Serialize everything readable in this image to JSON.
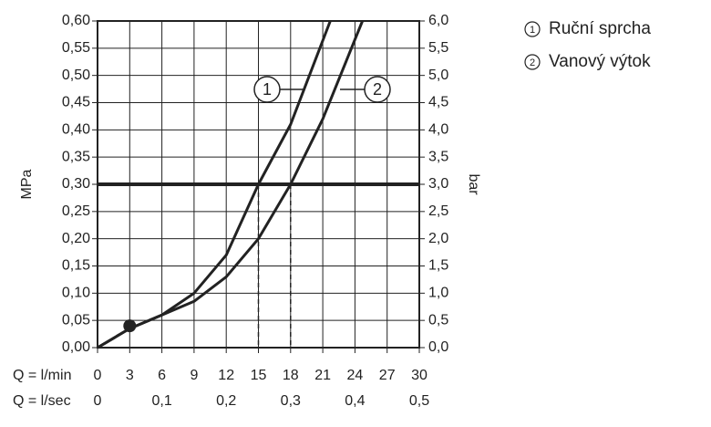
{
  "chart_data": {
    "type": "line",
    "y_label": "MPa",
    "y2_label": "bar",
    "x_label": "Q = l/min",
    "x2_label": "Q = l/sec",
    "xlim": [
      0,
      30
    ],
    "xticks": [
      0,
      3,
      6,
      9,
      12,
      15,
      18,
      21,
      24,
      27,
      30
    ],
    "x2lim": [
      0,
      0.5
    ],
    "x2ticks": [
      0,
      {
        "value": 0.1,
        "label": "0,1"
      },
      {
        "value": 0.2,
        "label": "0,2"
      },
      {
        "value": 0.3,
        "label": "0,3"
      },
      {
        "value": 0.4,
        "label": "0,4"
      },
      {
        "value": 0.5,
        "label": "0,5"
      }
    ],
    "ylim": [
      0,
      0.6
    ],
    "yticks": [
      {
        "value": 0,
        "label": "0,00"
      },
      {
        "value": 0.05,
        "label": "0,05"
      },
      {
        "value": 0.1,
        "label": "0,10"
      },
      {
        "value": 0.15,
        "label": "0,15"
      },
      {
        "value": 0.2,
        "label": "0,20"
      },
      {
        "value": 0.25,
        "label": "0,25"
      },
      {
        "value": 0.3,
        "label": "0,30"
      },
      {
        "value": 0.35,
        "label": "0,35"
      },
      {
        "value": 0.4,
        "label": "0,40"
      },
      {
        "value": 0.45,
        "label": "0,45"
      },
      {
        "value": 0.5,
        "label": "0,50"
      },
      {
        "value": 0.55,
        "label": "0,55"
      },
      {
        "value": 0.6,
        "label": "0,60"
      }
    ],
    "y2lim": [
      0,
      6
    ],
    "y2ticks": [
      {
        "value": 0,
        "label": "0,0"
      },
      {
        "value": 0.5,
        "label": "0,5"
      },
      {
        "value": 1,
        "label": "1,0"
      },
      {
        "value": 1.5,
        "label": "1,5"
      },
      {
        "value": 2,
        "label": "2,0"
      },
      {
        "value": 2.5,
        "label": "2,5"
      },
      {
        "value": 3,
        "label": "3,0"
      },
      {
        "value": 3.5,
        "label": "3,5"
      },
      {
        "value": 4,
        "label": "4,0"
      },
      {
        "value": 4.5,
        "label": "4,5"
      },
      {
        "value": 5,
        "label": "5,0"
      },
      {
        "value": 5.5,
        "label": "5,5"
      },
      {
        "value": 6,
        "label": "6,0"
      }
    ],
    "grid": true,
    "color": "#222222",
    "hline": 0.3,
    "drops": [
      15,
      18
    ],
    "marker": {
      "x": 3,
      "y": 0.04
    },
    "series": [
      {
        "name": "Ruční sprcha",
        "label": "1",
        "color": "#222222",
        "x": [
          0,
          3,
          6,
          9,
          12,
          15,
          18,
          21.7
        ],
        "values": [
          0,
          0.035,
          0.06,
          0.1,
          0.17,
          0.3,
          0.41,
          0.6
        ]
      },
      {
        "name": "Vanový výtok",
        "label": "2",
        "color": "#222222",
        "x": [
          0,
          3,
          6,
          9,
          12,
          15,
          18,
          21,
          24.7
        ],
        "values": [
          0,
          0.035,
          0.06,
          0.085,
          0.13,
          0.2,
          0.3,
          0.42,
          0.6
        ]
      }
    ]
  }
}
